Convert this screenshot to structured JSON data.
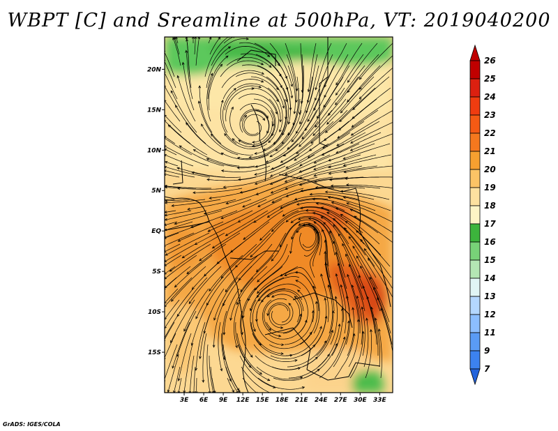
{
  "title": "WBPT [C] and Sreamline at 500hPa, VT: 2019040200",
  "credit": "GrADS: IGES/COLA",
  "map": {
    "lon_ticks": [
      "3E",
      "6E",
      "9E",
      "12E",
      "15E",
      "18E",
      "21E",
      "24E",
      "27E",
      "30E",
      "33E"
    ],
    "lat_ticks": [
      "20N",
      "15N",
      "10N",
      "5N",
      "EQ",
      "5S",
      "10S",
      "15S"
    ],
    "lon_range": [
      0,
      35
    ],
    "lat_range": [
      -20,
      24
    ]
  },
  "legend": {
    "labels": [
      "26",
      "25",
      "24",
      "23",
      "22",
      "21",
      "20",
      "19",
      "18",
      "17",
      "16",
      "15",
      "14",
      "13",
      "12",
      "11",
      "9",
      "7"
    ],
    "colors": [
      "#c00000",
      "#dc2010",
      "#f03c10",
      "#f55a14",
      "#f5781e",
      "#f7a030",
      "#fbc466",
      "#fde1a0",
      "#fdf4c6",
      "#3cb43c",
      "#78d278",
      "#b4e6b4",
      "#e1f5f5",
      "#b4d7ff",
      "#8cbeff",
      "#5a9bf5",
      "#3c82f0",
      "#2364dc"
    ]
  }
}
